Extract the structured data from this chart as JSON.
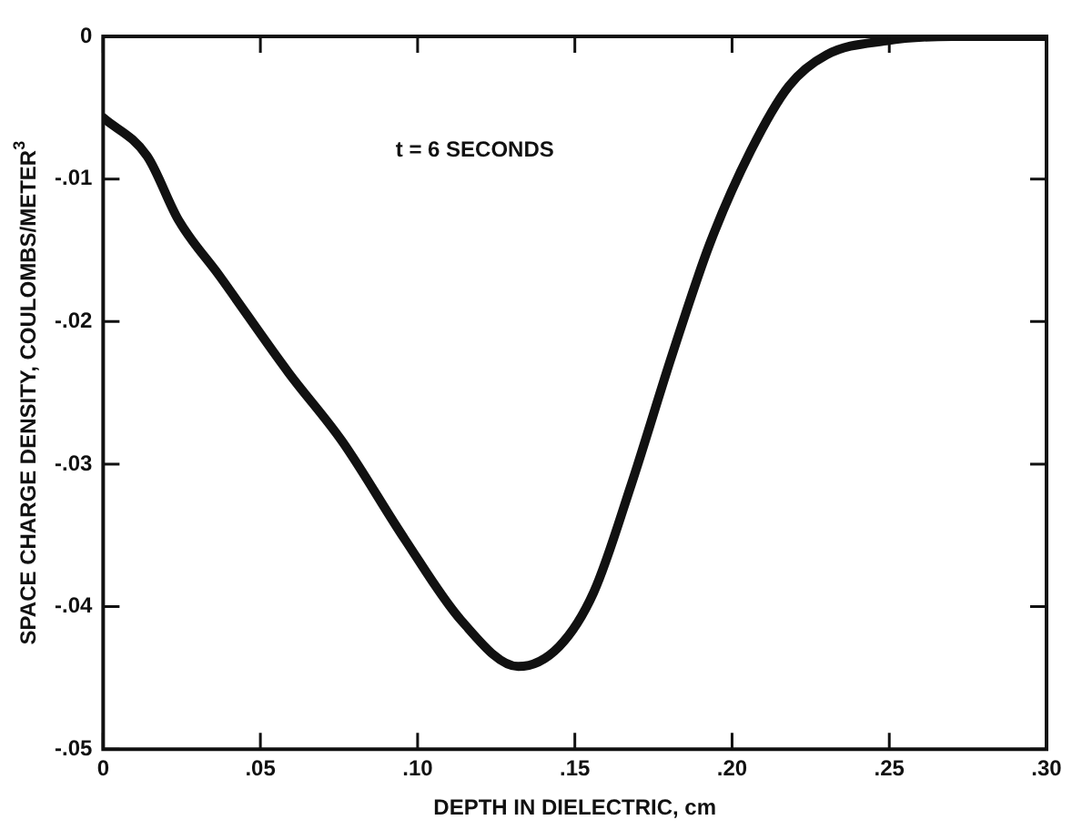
{
  "chart_data": {
    "type": "line",
    "xlabel": "DEPTH IN DIELECTRIC, cm",
    "ylabel": "SPACE CHARGE DENSITY, COULOMBS/METER$^{3}$",
    "annotations": [
      "t = 6 SECONDS"
    ],
    "x": [
      0,
      0.014,
      0.024,
      0.037,
      0.059,
      0.076,
      0.096,
      0.114,
      0.132,
      0.145,
      0.156,
      0.168,
      0.181,
      0.193,
      0.206,
      0.218,
      0.23,
      0.249,
      0.27,
      0.3
    ],
    "series": [
      {
        "color": "#111111",
        "values": [
          -0.0057,
          -0.0084,
          -0.0129,
          -0.0168,
          -0.0236,
          -0.0284,
          -0.0353,
          -0.041,
          -0.0442,
          -0.0428,
          -0.039,
          -0.0314,
          -0.0223,
          -0.0145,
          -0.008,
          -0.0035,
          -0.0013,
          -0.0003,
          0,
          0
        ]
      }
    ],
    "xlim": [
      0,
      0.3
    ],
    "ylim": [
      -0.05,
      0
    ],
    "xticks": [
      0,
      {
        "value": 0.05,
        "label": ".05"
      },
      {
        "value": 0.1,
        "label": ".10"
      },
      {
        "value": 0.15,
        "label": ".15"
      },
      {
        "value": 0.2,
        "label": ".20"
      },
      {
        "value": 0.25,
        "label": ".25"
      },
      {
        "value": 0.3,
        "label": ".30"
      }
    ],
    "yticks": [
      {
        "value": -0.05,
        "label": "-.05"
      },
      {
        "value": -0.04,
        "label": "-.04"
      },
      {
        "value": -0.03,
        "label": "-.03"
      },
      {
        "value": -0.02,
        "label": "-.02"
      },
      {
        "value": -0.01,
        "label": "-.01"
      },
      0
    ],
    "grid": false,
    "legend": false,
    "marker": "none",
    "line_style": "solid"
  }
}
